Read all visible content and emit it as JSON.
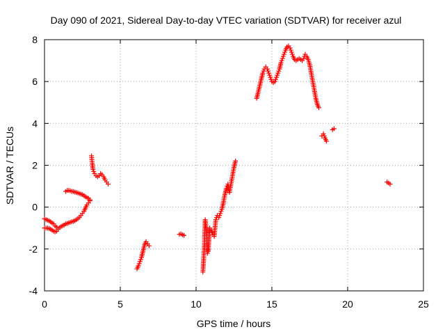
{
  "chart_data": {
    "type": "scatter",
    "title": "Day 090 of 2021, Sidereal Day-to-day VTEC variation (SDTVAR) for receiver azul",
    "xlabel": "GPS time / hours",
    "ylabel": "SDTVAR / TECUs",
    "xlim": [
      0,
      25
    ],
    "ylim": [
      -4,
      8
    ],
    "xticks": [
      "0",
      "5",
      "10",
      "15",
      "20",
      "25"
    ],
    "yticks": [
      "-4",
      "-2",
      "0",
      "2",
      "4",
      "6",
      "8"
    ],
    "grid": true,
    "marker": "plus",
    "color": "#ff0000",
    "series": [
      {
        "segments": [
          [
            [
              0.0,
              -0.55
            ],
            [
              0.1,
              -0.6
            ],
            [
              0.2,
              -0.62
            ],
            [
              0.3,
              -0.65
            ],
            [
              0.4,
              -0.7
            ],
            [
              0.5,
              -0.75
            ],
            [
              0.6,
              -0.8
            ],
            [
              0.7,
              -0.9
            ],
            [
              0.8,
              -0.95
            ]
          ],
          [
            [
              0.0,
              -1.0
            ],
            [
              0.1,
              -1.0
            ],
            [
              0.2,
              -1.0
            ],
            [
              0.3,
              -1.02
            ],
            [
              0.4,
              -1.05
            ],
            [
              0.5,
              -1.1
            ],
            [
              0.6,
              -1.15
            ],
            [
              0.7,
              -1.18
            ],
            [
              0.8,
              -1.15
            ],
            [
              0.9,
              -1.05
            ],
            [
              1.0,
              -0.98
            ],
            [
              1.1,
              -0.92
            ],
            [
              1.2,
              -0.88
            ],
            [
              1.3,
              -0.85
            ],
            [
              1.4,
              -0.8
            ],
            [
              1.5,
              -0.78
            ],
            [
              1.6,
              -0.75
            ],
            [
              1.7,
              -0.72
            ],
            [
              1.8,
              -0.7
            ],
            [
              1.9,
              -0.68
            ],
            [
              2.0,
              -0.65
            ],
            [
              2.1,
              -0.6
            ],
            [
              2.2,
              -0.55
            ],
            [
              2.3,
              -0.48
            ],
            [
              2.4,
              -0.4
            ],
            [
              2.5,
              -0.3
            ],
            [
              2.6,
              -0.2
            ],
            [
              2.7,
              -0.05
            ],
            [
              2.8,
              0.1
            ],
            [
              2.9,
              0.2
            ],
            [
              3.0,
              0.3
            ]
          ],
          [
            [
              1.4,
              0.75
            ],
            [
              1.5,
              0.8
            ],
            [
              1.6,
              0.8
            ],
            [
              1.7,
              0.78
            ],
            [
              1.8,
              0.75
            ],
            [
              1.9,
              0.75
            ],
            [
              2.0,
              0.72
            ],
            [
              2.1,
              0.7
            ],
            [
              2.2,
              0.68
            ],
            [
              2.3,
              0.65
            ],
            [
              2.4,
              0.62
            ],
            [
              2.5,
              0.6
            ],
            [
              2.6,
              0.55
            ],
            [
              2.7,
              0.5
            ],
            [
              2.8,
              0.45
            ],
            [
              2.9,
              0.42
            ],
            [
              3.0,
              0.35
            ]
          ],
          [
            [
              3.1,
              2.45
            ],
            [
              3.15,
              2.1
            ],
            [
              3.2,
              1.8
            ],
            [
              3.3,
              1.6
            ],
            [
              3.4,
              1.5
            ],
            [
              3.5,
              1.45
            ],
            [
              3.6,
              1.5
            ],
            [
              3.7,
              1.6
            ],
            [
              3.8,
              1.55
            ],
            [
              3.9,
              1.45
            ],
            [
              4.0,
              1.3
            ],
            [
              4.1,
              1.2
            ],
            [
              4.2,
              1.1
            ]
          ],
          [
            [
              6.1,
              -2.95
            ],
            [
              6.2,
              -2.8
            ],
            [
              6.3,
              -2.6
            ],
            [
              6.4,
              -2.4
            ],
            [
              6.5,
              -2.1
            ],
            [
              6.6,
              -1.8
            ],
            [
              6.7,
              -1.65
            ],
            [
              6.8,
              -1.75
            ],
            [
              6.9,
              -1.85
            ]
          ],
          [
            [
              8.9,
              -1.3
            ],
            [
              9.0,
              -1.28
            ],
            [
              9.1,
              -1.32
            ],
            [
              9.2,
              -1.35
            ]
          ],
          [
            [
              10.45,
              -3.1
            ],
            [
              10.5,
              -2.5
            ],
            [
              10.55,
              -1.8
            ],
            [
              10.6,
              -0.6
            ],
            [
              10.65,
              -0.9
            ],
            [
              10.7,
              -1.2
            ],
            [
              10.75,
              -2.2
            ],
            [
              10.8,
              -2.1
            ],
            [
              10.9,
              -1.0
            ],
            [
              11.0,
              -1.1
            ],
            [
              11.1,
              -1.3
            ],
            [
              11.2,
              -1.4
            ],
            [
              11.3,
              -0.6
            ],
            [
              11.4,
              -0.4
            ],
            [
              11.5,
              -0.5
            ],
            [
              11.6,
              -0.3
            ],
            [
              11.7,
              -0.1
            ],
            [
              11.8,
              0.2
            ],
            [
              11.9,
              0.6
            ],
            [
              12.0,
              0.9
            ],
            [
              12.1,
              1.1
            ],
            [
              12.2,
              0.7
            ],
            [
              12.3,
              1.1
            ],
            [
              12.4,
              1.5
            ],
            [
              12.5,
              1.9
            ],
            [
              12.6,
              2.2
            ]
          ],
          [
            [
              14.0,
              5.2
            ],
            [
              14.1,
              5.5
            ],
            [
              14.2,
              5.8
            ],
            [
              14.3,
              6.1
            ],
            [
              14.4,
              6.4
            ],
            [
              14.5,
              6.6
            ],
            [
              14.6,
              6.7
            ],
            [
              14.7,
              6.6
            ],
            [
              14.8,
              6.4
            ],
            [
              14.9,
              6.2
            ],
            [
              15.0,
              6.0
            ],
            [
              15.1,
              5.95
            ],
            [
              15.2,
              6.0
            ],
            [
              15.3,
              6.2
            ],
            [
              15.4,
              6.4
            ],
            [
              15.5,
              6.6
            ],
            [
              15.6,
              6.9
            ],
            [
              15.7,
              7.1
            ],
            [
              15.8,
              7.3
            ],
            [
              15.9,
              7.5
            ],
            [
              16.0,
              7.65
            ],
            [
              16.1,
              7.7
            ],
            [
              16.2,
              7.6
            ],
            [
              16.3,
              7.4
            ],
            [
              16.4,
              7.2
            ],
            [
              16.5,
              7.05
            ],
            [
              16.6,
              7.0
            ],
            [
              16.7,
              7.05
            ],
            [
              16.8,
              7.1
            ],
            [
              16.9,
              7.05
            ],
            [
              17.0,
              7.0
            ],
            [
              17.1,
              7.1
            ],
            [
              17.2,
              7.3
            ],
            [
              17.3,
              7.2
            ],
            [
              17.4,
              7.05
            ],
            [
              17.5,
              6.8
            ],
            [
              17.6,
              6.4
            ],
            [
              17.7,
              6.0
            ],
            [
              17.8,
              5.6
            ],
            [
              17.9,
              5.2
            ],
            [
              18.0,
              4.9
            ],
            [
              18.1,
              4.75
            ]
          ],
          [
            [
              18.3,
              3.4
            ],
            [
              18.4,
              3.5
            ],
            [
              18.5,
              3.3
            ],
            [
              18.6,
              3.15
            ]
          ],
          [
            [
              19.0,
              3.7
            ],
            [
              19.1,
              3.75
            ]
          ],
          [
            [
              22.6,
              1.2
            ],
            [
              22.7,
              1.15
            ],
            [
              22.8,
              1.1
            ]
          ]
        ]
      }
    ]
  }
}
